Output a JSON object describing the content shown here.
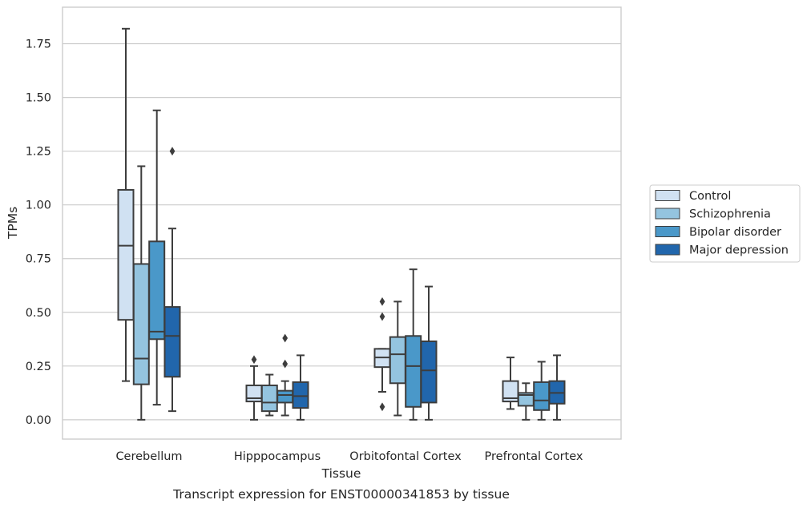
{
  "chart_data": {
    "type": "box",
    "title": "",
    "caption": "Transcript expression for ENST00000341853 by tissue",
    "xlabel": "Tissue",
    "ylabel": "TPMs",
    "ylim": [
      -0.09,
      1.92
    ],
    "yticks": [
      "0.00",
      "0.25",
      "0.50",
      "0.75",
      "1.00",
      "1.25",
      "1.50",
      "1.75"
    ],
    "grid": "horizontal",
    "legend_position": "right",
    "categories": [
      "Cerebellum",
      "Hipppocampus",
      "Orbitofontal Cortex",
      "Prefrontal Cortex"
    ],
    "series": [
      {
        "name": "Control",
        "color": "#d0e1f2",
        "boxes": [
          {
            "whislo": 0.18,
            "q1": 0.465,
            "med": 0.81,
            "q3": 1.07,
            "whishi": 1.82,
            "fliers": []
          },
          {
            "whislo": 0.0,
            "q1": 0.085,
            "med": 0.1,
            "q3": 0.16,
            "whishi": 0.25,
            "fliers": [
              0.28
            ]
          },
          {
            "whislo": 0.13,
            "q1": 0.245,
            "med": 0.29,
            "q3": 0.33,
            "whishi": 0.33,
            "fliers": [
              0.55,
              0.48,
              0.06
            ]
          },
          {
            "whislo": 0.05,
            "q1": 0.085,
            "med": 0.1,
            "q3": 0.18,
            "whishi": 0.29,
            "fliers": []
          }
        ]
      },
      {
        "name": "Schizophrenia",
        "color": "#94c4df",
        "boxes": [
          {
            "whislo": 0.0,
            "q1": 0.165,
            "med": 0.285,
            "q3": 0.725,
            "whishi": 1.18,
            "fliers": []
          },
          {
            "whislo": 0.02,
            "q1": 0.04,
            "med": 0.08,
            "q3": 0.16,
            "whishi": 0.21,
            "fliers": []
          },
          {
            "whislo": 0.02,
            "q1": 0.17,
            "med": 0.305,
            "q3": 0.385,
            "whishi": 0.55,
            "fliers": []
          },
          {
            "whislo": 0.0,
            "q1": 0.065,
            "med": 0.115,
            "q3": 0.125,
            "whishi": 0.17,
            "fliers": []
          }
        ]
      },
      {
        "name": "Bipolar disorder",
        "color": "#4a98c9",
        "boxes": [
          {
            "whislo": 0.07,
            "q1": 0.375,
            "med": 0.41,
            "q3": 0.83,
            "whishi": 1.44,
            "fliers": []
          },
          {
            "whislo": 0.02,
            "q1": 0.08,
            "med": 0.115,
            "q3": 0.135,
            "whishi": 0.18,
            "fliers": [
              0.38,
              0.26
            ]
          },
          {
            "whislo": 0.0,
            "q1": 0.06,
            "med": 0.25,
            "q3": 0.39,
            "whishi": 0.7,
            "fliers": []
          },
          {
            "whislo": 0.0,
            "q1": 0.045,
            "med": 0.09,
            "q3": 0.175,
            "whishi": 0.27,
            "fliers": []
          }
        ]
      },
      {
        "name": "Major depression",
        "color": "#2166ac",
        "boxes": [
          {
            "whislo": 0.04,
            "q1": 0.2,
            "med": 0.39,
            "q3": 0.525,
            "whishi": 0.89,
            "fliers": [
              1.25
            ]
          },
          {
            "whislo": 0.0,
            "q1": 0.055,
            "med": 0.11,
            "q3": 0.175,
            "whishi": 0.3,
            "fliers": []
          },
          {
            "whislo": 0.0,
            "q1": 0.08,
            "med": 0.23,
            "q3": 0.365,
            "whishi": 0.62,
            "fliers": []
          },
          {
            "whislo": 0.0,
            "q1": 0.075,
            "med": 0.125,
            "q3": 0.18,
            "whishi": 0.3,
            "fliers": []
          }
        ]
      }
    ]
  }
}
